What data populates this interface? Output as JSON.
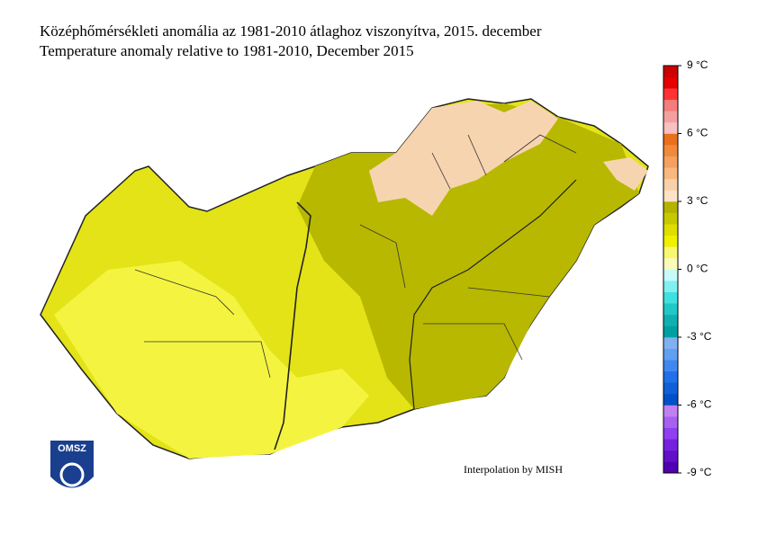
{
  "title": "Középhőmérsékleti anomália az 1981-2010 átlaghoz viszonyítva, 2015. december",
  "subtitle": "Temperature anomaly relative to 1981-2010, December 2015",
  "credit": "Interpolation by MISH",
  "logo": "OMSZ",
  "colorbar": {
    "lim": [
      -9,
      9
    ],
    "ticks": [
      {
        "value": 9,
        "label": "9 °C"
      },
      {
        "value": 6,
        "label": "6 °C"
      },
      {
        "value": 3,
        "label": "3 °C"
      },
      {
        "value": 0,
        "label": "0 °C"
      },
      {
        "value": -3,
        "label": "-3 °C"
      },
      {
        "value": -6,
        "label": "-6 °C"
      },
      {
        "value": -9,
        "label": "-9 °C"
      }
    ],
    "colors": [
      "#5000b0",
      "#6010c8",
      "#7820e0",
      "#9040f0",
      "#a860f0",
      "#c080f0",
      "#0050c8",
      "#1060d8",
      "#2070e8",
      "#4088f0",
      "#60a0f0",
      "#80b0f0",
      "#00a0a0",
      "#10b0b0",
      "#20c8c8",
      "#40e0e0",
      "#80f0f0",
      "#c8fafa",
      "#fbfbb8",
      "#f8f870",
      "#f0f000",
      "#dede00",
      "#c8c800",
      "#b3b300",
      "#fde2c8",
      "#fad0a8",
      "#f8b880",
      "#f4a060",
      "#f08a3a",
      "#e8701a",
      "#f8c0c0",
      "#f5a0a0",
      "#f47c7c",
      "#ff3333",
      "#e60000",
      "#cc0000"
    ]
  }
}
